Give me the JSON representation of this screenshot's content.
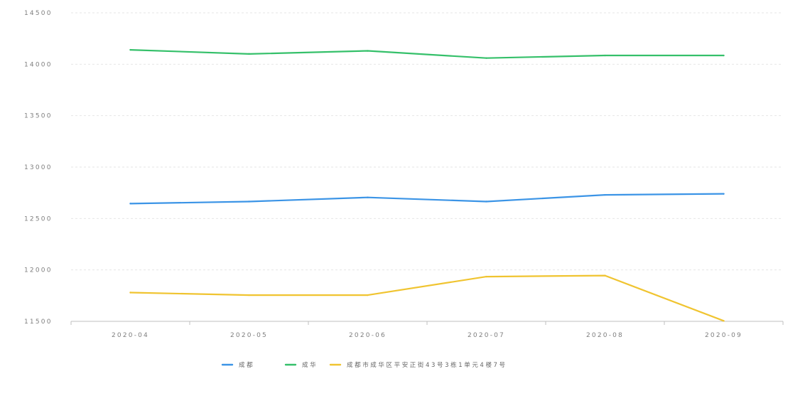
{
  "chart_data": {
    "type": "line",
    "categories": [
      "2020-04",
      "2020-05",
      "2020-06",
      "2020-07",
      "2020-08",
      "2020-09"
    ],
    "ylim": [
      11500,
      14500
    ],
    "yticks": [
      11500,
      12000,
      12500,
      13000,
      13500,
      14000,
      14500
    ],
    "ytick_labels": [
      "11500",
      "12000",
      "12500",
      "13000",
      "13500",
      "14000",
      "14500"
    ],
    "grid": true,
    "legend_position": "bottom-center",
    "series": [
      {
        "name": "成都",
        "color": "#3b94e6",
        "values": [
          12645,
          12665,
          12705,
          12665,
          12730,
          12740
        ]
      },
      {
        "name": "成华",
        "color": "#35c06a",
        "values": [
          14140,
          14100,
          14130,
          14060,
          14085,
          14085
        ]
      },
      {
        "name": "成都市成华区平安正街43号3栋1单元4楼7号",
        "color": "#f0c430",
        "values": [
          11780,
          11755,
          11755,
          11935,
          11945,
          11505
        ]
      }
    ]
  }
}
